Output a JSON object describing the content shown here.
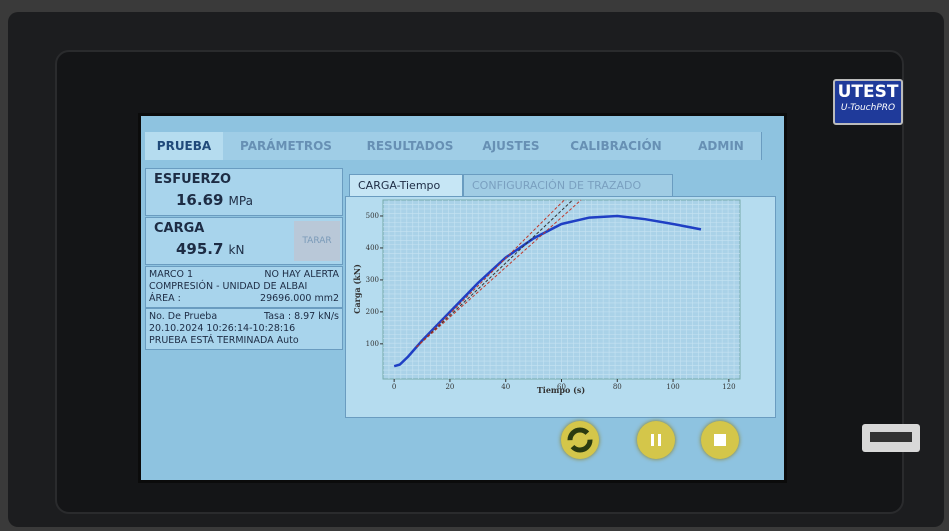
{
  "device": {
    "brand": "UTEST",
    "model": "U-TouchPRO"
  },
  "tabs": [
    "PRUEBA",
    "PARÁMETROS",
    "RESULTADOS",
    "AJUSTES",
    "CALIBRACIÓN",
    "ADMIN"
  ],
  "stress": {
    "label": "ESFUERZO",
    "value": "16.69",
    "unit": "MPa"
  },
  "load": {
    "label": "CARGA",
    "value": "495.7",
    "unit": "kN",
    "button": "TARAR"
  },
  "info": [
    [
      "MARCO 1",
      "NO HAY ALERTA"
    ],
    [
      "COMPRESIÓN - UNIDAD DE ALBAI"
    ],
    [
      "ÁREA :",
      "29696.000  mm2"
    ]
  ],
  "test": [
    [
      "No. De Prueba",
      "Tasa : 8.97 kN/s"
    ],
    [
      "20.10.2024 10:26:14-10:28:16"
    ],
    [
      "PRUEBA ESTÁ TERMINADA Auto"
    ]
  ],
  "chart_tabs": [
    "CARGA-Tiempo",
    "CONFIGURACIÓN DE TRAZADO"
  ],
  "chart_data": {
    "type": "line",
    "x_label": "Tiempo (s)",
    "y_label": "Carga (kN)",
    "xlim": [
      -4,
      124
    ],
    "ylim": [
      -10,
      550
    ],
    "xticks": [
      0,
      20,
      40,
      60,
      80,
      100,
      120
    ],
    "yticks": [
      100,
      200,
      300,
      400,
      500
    ],
    "grid": true,
    "series": [
      {
        "color": "#1f3fc4",
        "x": [
          0,
          2,
          5,
          10,
          20,
          30,
          40,
          50,
          60,
          70,
          80,
          90,
          100,
          110
        ],
        "values": [
          30,
          35,
          60,
          110,
          200,
          290,
          370,
          430,
          475,
          495,
          500,
          490,
          475,
          458
        ]
      },
      {
        "color": "#c0392b",
        "dashed": true,
        "x": [
          8,
          61
        ],
        "values": [
          90,
          550
        ]
      },
      {
        "color": "#333333",
        "dashed": true,
        "x": [
          8,
          64
        ],
        "values": [
          90,
          550
        ]
      },
      {
        "color": "#c0392b",
        "dashed": true,
        "x": [
          8,
          67
        ],
        "values": [
          90,
          550
        ]
      }
    ]
  }
}
